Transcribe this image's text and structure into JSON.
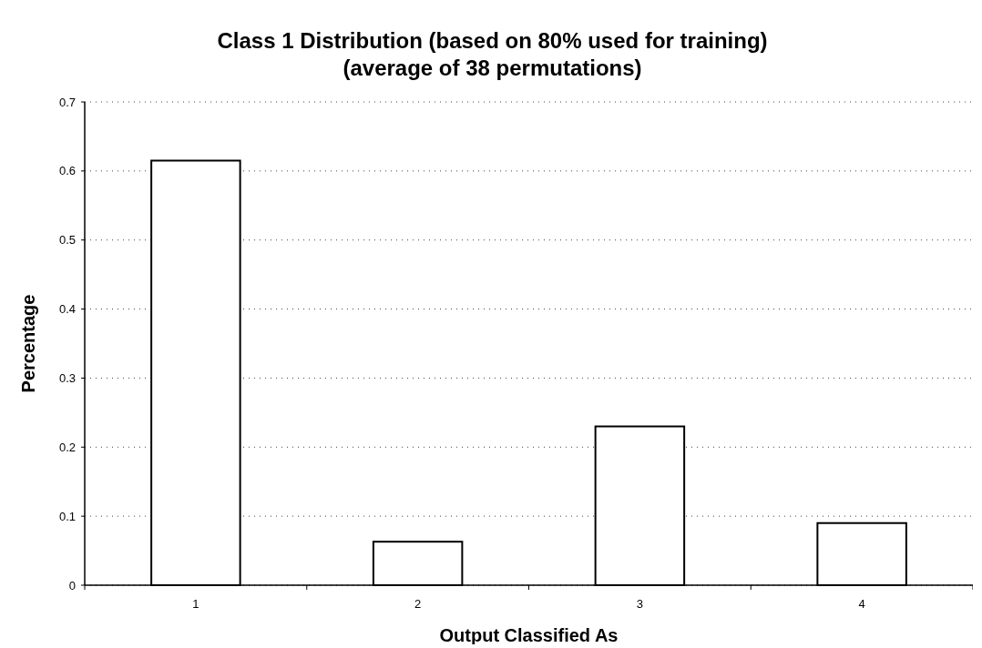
{
  "chart_data": {
    "type": "bar",
    "title": "Class 1 Distribution (based on 80% used for training)\n(average of 38 permutations)",
    "xlabel": "Output Classified As",
    "ylabel": "Percentage",
    "categories": [
      "1",
      "2",
      "3",
      "4"
    ],
    "values": [
      0.615,
      0.063,
      0.23,
      0.09
    ],
    "color": "#ffffff",
    "ylim": [
      0,
      0.7
    ],
    "yticks": [
      0,
      0.1,
      0.2,
      0.3,
      0.4,
      0.5,
      0.6,
      0.7
    ],
    "grid": "y"
  }
}
